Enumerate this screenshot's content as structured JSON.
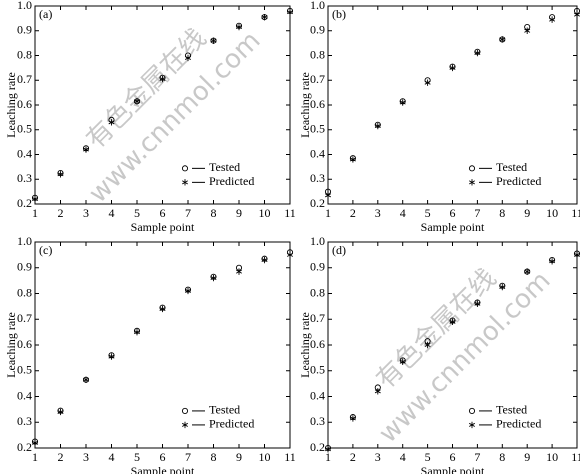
{
  "chart_data": [
    {
      "type": "scatter",
      "label": "(a)",
      "xlabel": "Sample point",
      "ylabel": "Leaching rate",
      "watermark": [
        "有色金属在线",
        "www.cnnmol.com"
      ],
      "x": [
        1,
        2,
        3,
        4,
        5,
        6,
        7,
        8,
        9,
        10,
        11
      ],
      "xlim": [
        1,
        11
      ],
      "xticks": [
        1,
        2,
        3,
        4,
        5,
        6,
        7,
        8,
        9,
        10,
        11
      ],
      "ylim": [
        0.2,
        1
      ],
      "yticks": [
        0.2,
        0.3,
        0.4,
        0.5,
        0.6,
        0.7,
        0.8,
        0.9,
        {
          "value": 1,
          "label": "1.0"
        }
      ],
      "series": [
        {
          "name": "Tested",
          "color": "#000000",
          "marker": "circle",
          "values": [
            0.225,
            0.325,
            0.425,
            0.54,
            0.615,
            0.71,
            0.8,
            0.86,
            0.92,
            0.955,
            0.98
          ]
        },
        {
          "name": "Predicted",
          "color": "#000000",
          "marker": "star",
          "values": [
            0.22,
            0.32,
            0.42,
            0.53,
            0.615,
            0.705,
            0.79,
            0.86,
            0.915,
            0.955,
            0.975
          ]
        }
      ]
    },
    {
      "type": "scatter",
      "label": "(b)",
      "xlabel": "Sample point",
      "ylabel": "Leaching rate",
      "x": [
        1,
        2,
        3,
        4,
        5,
        6,
        7,
        8,
        9,
        10,
        11
      ],
      "xlim": [
        1,
        11
      ],
      "xticks": [
        1,
        2,
        3,
        4,
        5,
        6,
        7,
        8,
        9,
        10,
        11
      ],
      "ylim": [
        0.2,
        1
      ],
      "yticks": [
        0.2,
        0.3,
        0.4,
        0.5,
        0.6,
        0.7,
        0.8,
        0.9,
        {
          "value": 1,
          "label": "1.0"
        }
      ],
      "series": [
        {
          "name": "Tested",
          "color": "#000000",
          "marker": "circle",
          "values": [
            0.25,
            0.385,
            0.52,
            0.615,
            0.7,
            0.755,
            0.815,
            0.865,
            0.915,
            0.955,
            0.98
          ]
        },
        {
          "name": "Predicted",
          "color": "#000000",
          "marker": "star",
          "values": [
            0.235,
            0.38,
            0.515,
            0.61,
            0.69,
            0.75,
            0.81,
            0.865,
            0.9,
            0.945,
            0.965
          ]
        }
      ]
    },
    {
      "type": "scatter",
      "label": "(c)",
      "xlabel": "Sample point",
      "ylabel": "Leaching rate",
      "x": [
        1,
        2,
        3,
        4,
        5,
        6,
        7,
        8,
        9,
        10,
        11
      ],
      "xlim": [
        1,
        11
      ],
      "xticks": [
        1,
        2,
        3,
        4,
        5,
        6,
        7,
        8,
        9,
        10,
        11
      ],
      "ylim": [
        0.2,
        1
      ],
      "yticks": [
        0.2,
        0.3,
        0.4,
        0.5,
        0.6,
        0.7,
        0.8,
        0.9,
        {
          "value": 1,
          "label": "1.0"
        }
      ],
      "series": [
        {
          "name": "Tested",
          "color": "#000000",
          "marker": "circle",
          "values": [
            0.225,
            0.345,
            0.465,
            0.56,
            0.655,
            0.745,
            0.815,
            0.865,
            0.9,
            0.935,
            0.96
          ]
        },
        {
          "name": "Predicted",
          "color": "#000000",
          "marker": "star",
          "values": [
            0.22,
            0.34,
            0.465,
            0.555,
            0.65,
            0.74,
            0.81,
            0.86,
            0.885,
            0.93,
            0.95
          ]
        }
      ]
    },
    {
      "type": "scatter",
      "label": "(d)",
      "xlabel": "Sample point",
      "ylabel": "Leaching rate",
      "watermark": [
        "有色金属在线",
        "www.cnnmol.com"
      ],
      "x": [
        1,
        2,
        3,
        4,
        5,
        6,
        7,
        8,
        9,
        10,
        11
      ],
      "xlim": [
        1,
        11
      ],
      "xticks": [
        1,
        2,
        3,
        4,
        5,
        6,
        7,
        8,
        9,
        10,
        11
      ],
      "ylim": [
        0.2,
        1
      ],
      "yticks": [
        0.2,
        0.3,
        0.4,
        0.5,
        0.6,
        0.7,
        0.8,
        0.9,
        {
          "value": 1,
          "label": "1.0"
        }
      ],
      "series": [
        {
          "name": "Tested",
          "color": "#000000",
          "marker": "circle",
          "values": [
            0.2,
            0.32,
            0.435,
            0.54,
            0.615,
            0.695,
            0.765,
            0.83,
            0.885,
            0.93,
            0.955
          ]
        },
        {
          "name": "Predicted",
          "color": "#000000",
          "marker": "star",
          "values": [
            0.195,
            0.315,
            0.42,
            0.535,
            0.6,
            0.69,
            0.76,
            0.825,
            0.885,
            0.925,
            0.95
          ]
        }
      ]
    }
  ]
}
